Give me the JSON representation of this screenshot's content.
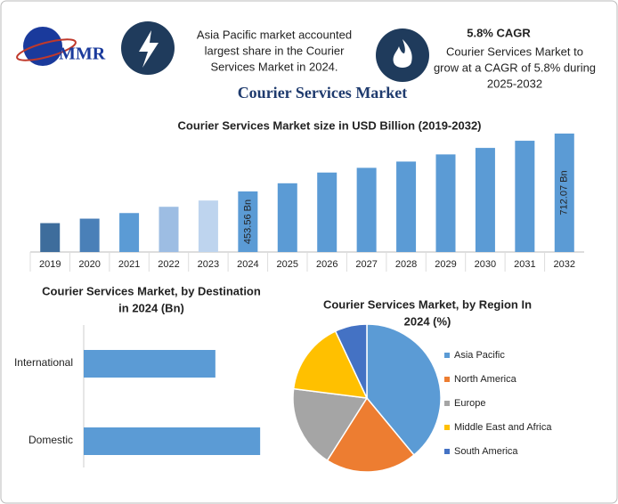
{
  "header": {
    "logo": "MMR",
    "note_left": [
      "Asia Pacific market accounted",
      "largest share in the Courier",
      "Services Market in 2024."
    ],
    "cagr": "5.8% CAGR",
    "note_right": [
      "Courier Services Market to",
      "grow at a CAGR of 5.8% during",
      "2025-2032"
    ],
    "title": "Courier Services Market"
  },
  "chart_data": [
    {
      "type": "bar",
      "title": "Courier Services Market size in USD Billion (2019-2032)",
      "categories": [
        "2019",
        "2020",
        "2021",
        "2022",
        "2023",
        "2024",
        "2025",
        "2026",
        "2027",
        "2028",
        "2029",
        "2030",
        "2031",
        "2032"
      ],
      "values": [
        312,
        332,
        357,
        385,
        413,
        453.56,
        490,
        538,
        559,
        587,
        619,
        648,
        680,
        712.07
      ],
      "value_labels": [
        null,
        null,
        null,
        null,
        null,
        "453.56 Bn",
        null,
        null,
        null,
        null,
        null,
        null,
        null,
        "712.07 Bn"
      ],
      "colors": [
        "#3e6d9c",
        "#4a80b8",
        "#5b9bd5",
        "#9dbde3",
        "#bed4ee",
        "#5b9bd5",
        "#5b9bd5",
        "#5b9bd5",
        "#5b9bd5",
        "#5b9bd5",
        "#5b9bd5",
        "#5b9bd5",
        "#5b9bd5",
        "#5b9bd5"
      ],
      "ylim": [
        183,
        720
      ]
    },
    {
      "type": "hbar",
      "title": [
        "Courier Services Market, by Destination",
        "in 2024 (Bn)"
      ],
      "categories": [
        "International",
        "Domestic"
      ],
      "values": [
        193.8,
        259.7
      ],
      "color": "#5b9bd5",
      "xlim": [
        0,
        270
      ]
    },
    {
      "type": "pie",
      "title": [
        "Courier Services Market, by Region In",
        "2024 (%)"
      ],
      "categories": [
        "Asia Pacific",
        "North America",
        "Europe",
        "Middle East and Africa",
        "South America"
      ],
      "values": [
        39,
        20,
        18,
        16,
        7
      ],
      "colors": [
        "#5b9bd5",
        "#ed7d31",
        "#a5a5a5",
        "#ffc000",
        "#4472c4"
      ],
      "legend": "right"
    }
  ]
}
